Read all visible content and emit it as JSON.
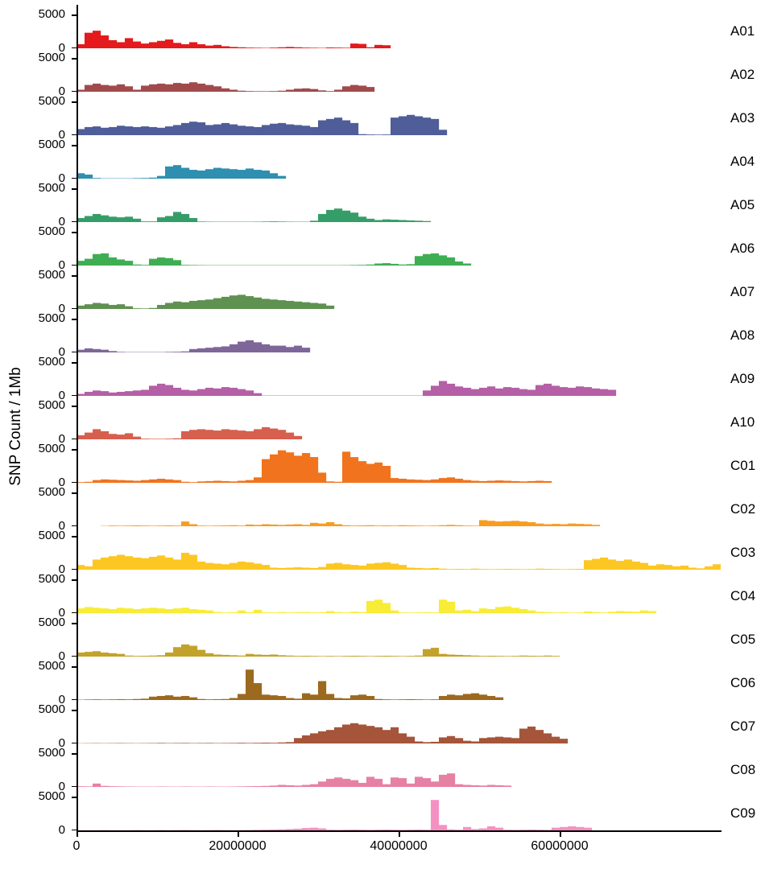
{
  "chart_data": {
    "type": "bar",
    "title": "",
    "xlabel": "",
    "ylabel": "SNP Count / 1Mb",
    "bin_size_bp": 1000000,
    "grid": false,
    "legend": "none",
    "layout": "19 stacked chromosome panels sharing one x axis, chromosome label at right of each panel",
    "x_axis": {
      "min": 0,
      "max": 80000000,
      "ticks": [
        0,
        20000000,
        40000000,
        60000000
      ],
      "tick_labels": [
        "0",
        "20000000",
        "40000000",
        "60000000"
      ]
    },
    "y_axis": {
      "min": 0,
      "max": 5000,
      "ticks": [
        0,
        5000
      ],
      "tick_labels": [
        "0",
        "5000"
      ]
    },
    "panels": [
      {
        "chromosome": "A01",
        "color": "#e41a1c",
        "values": [
          600,
          2300,
          2600,
          1900,
          1200,
          900,
          1500,
          1000,
          700,
          900,
          1100,
          1300,
          800,
          600,
          900,
          600,
          400,
          500,
          300,
          200,
          150,
          100,
          80,
          60,
          100,
          150,
          200,
          150,
          100,
          80,
          60,
          120,
          100,
          80,
          700,
          650,
          150,
          500,
          450
        ]
      },
      {
        "chromosome": "A02",
        "color": "#a04a4c",
        "values": [
          300,
          1000,
          1200,
          1000,
          900,
          1100,
          800,
          300,
          900,
          1100,
          1200,
          1100,
          1300,
          1200,
          1400,
          1200,
          1000,
          800,
          500,
          300,
          150,
          100,
          80,
          80,
          100,
          150,
          300,
          450,
          500,
          400,
          200,
          100,
          300,
          800,
          1000,
          900,
          700
        ]
      },
      {
        "chromosome": "A03",
        "color": "#4f5d99",
        "values": [
          900,
          1200,
          1300,
          1100,
          1200,
          1400,
          1300,
          1200,
          1300,
          1200,
          1100,
          1300,
          1500,
          1800,
          2000,
          1900,
          1500,
          1600,
          1800,
          1600,
          1400,
          1300,
          1200,
          1500,
          1700,
          1800,
          1600,
          1500,
          1400,
          1200,
          2200,
          2400,
          2600,
          2200,
          1800,
          150,
          100,
          80,
          100,
          2600,
          2800,
          3000,
          2800,
          2600,
          2400,
          800
        ]
      },
      {
        "chromosome": "A04",
        "color": "#2e8fb0",
        "values": [
          800,
          600,
          100,
          50,
          50,
          50,
          50,
          80,
          100,
          150,
          400,
          1800,
          2000,
          1600,
          1300,
          1200,
          1400,
          1600,
          1500,
          1400,
          1300,
          1500,
          1300,
          1200,
          800,
          400
        ]
      },
      {
        "chromosome": "A05",
        "color": "#359e68",
        "values": [
          600,
          900,
          1200,
          1000,
          800,
          700,
          800,
          500,
          100,
          100,
          700,
          900,
          1500,
          1200,
          600,
          80,
          60,
          50,
          50,
          50,
          50,
          50,
          60,
          80,
          100,
          80,
          60,
          50,
          50,
          200,
          1200,
          1800,
          2000,
          1700,
          1400,
          800,
          500,
          300,
          400,
          350,
          300,
          250,
          200,
          150
        ]
      },
      {
        "chromosome": "A06",
        "color": "#3fae53",
        "values": [
          700,
          1000,
          1700,
          1800,
          1200,
          900,
          700,
          150,
          100,
          1000,
          1200,
          1100,
          800,
          100,
          80,
          60,
          50,
          50,
          50,
          50,
          50,
          50,
          50,
          50,
          50,
          50,
          50,
          50,
          50,
          50,
          50,
          50,
          50,
          60,
          80,
          100,
          150,
          300,
          350,
          250,
          150,
          200,
          1400,
          1700,
          1800,
          1500,
          1200,
          600,
          300
        ]
      },
      {
        "chromosome": "A07",
        "color": "#5f9150",
        "values": [
          500,
          700,
          900,
          800,
          600,
          700,
          400,
          100,
          80,
          150,
          600,
          900,
          1100,
          1000,
          1200,
          1300,
          1400,
          1600,
          1800,
          2000,
          2100,
          1900,
          1700,
          1500,
          1400,
          1300,
          1200,
          1100,
          1000,
          900,
          800,
          500
        ]
      },
      {
        "chromosome": "A08",
        "color": "#7e6699",
        "values": [
          400,
          600,
          500,
          400,
          200,
          80,
          50,
          50,
          50,
          50,
          50,
          80,
          100,
          150,
          500,
          600,
          700,
          800,
          900,
          1200,
          1600,
          1800,
          1500,
          1200,
          1000,
          1000,
          800,
          1000,
          700
        ]
      },
      {
        "chromosome": "A09",
        "color": "#b55fa6",
        "values": [
          300,
          600,
          800,
          700,
          500,
          600,
          700,
          800,
          900,
          1500,
          1800,
          1600,
          1200,
          900,
          800,
          1000,
          1200,
          1100,
          1300,
          1200,
          1000,
          800,
          400,
          50,
          50,
          50,
          50,
          50,
          50,
          50,
          50,
          50,
          50,
          50,
          50,
          50,
          50,
          50,
          50,
          50,
          50,
          50,
          50,
          800,
          1500,
          2200,
          1800,
          1400,
          1200,
          1000,
          1200,
          1400,
          1100,
          1300,
          1200,
          1000,
          900,
          1600,
          1800,
          1500,
          1300,
          1200,
          1400,
          1300,
          1100,
          1000,
          900
        ]
      },
      {
        "chromosome": "A10",
        "color": "#d75f4e",
        "values": [
          600,
          1000,
          1500,
          1200,
          800,
          700,
          900,
          400,
          100,
          80,
          80,
          100,
          150,
          1200,
          1400,
          1500,
          1400,
          1300,
          1500,
          1400,
          1300,
          1200,
          1500,
          1800,
          1600,
          1400,
          1000,
          500
        ]
      },
      {
        "chromosome": "C01",
        "color": "#f1731d",
        "values": [
          100,
          150,
          400,
          500,
          450,
          400,
          350,
          300,
          400,
          500,
          600,
          500,
          400,
          150,
          100,
          200,
          250,
          300,
          250,
          200,
          300,
          400,
          800,
          3500,
          4200,
          4800,
          4500,
          4000,
          4400,
          3800,
          1500,
          200,
          150,
          4600,
          3800,
          3200,
          2800,
          3000,
          2500,
          700,
          600,
          500,
          450,
          400,
          500,
          700,
          800,
          600,
          400,
          300,
          250,
          300,
          350,
          300,
          250,
          200,
          250,
          300,
          250
        ]
      },
      {
        "chromosome": "C02",
        "color": "#f89c20",
        "values": [
          0,
          0,
          0,
          50,
          100,
          80,
          100,
          120,
          100,
          80,
          100,
          120,
          100,
          700,
          300,
          100,
          80,
          100,
          120,
          150,
          100,
          250,
          200,
          300,
          250,
          200,
          250,
          300,
          200,
          500,
          400,
          600,
          300,
          150,
          100,
          120,
          150,
          100,
          120,
          100,
          150,
          120,
          100,
          80,
          100,
          150,
          200,
          150,
          100,
          80,
          900,
          800,
          700,
          750,
          800,
          700,
          600,
          400,
          300,
          350,
          300,
          400,
          350,
          300,
          200
        ]
      },
      {
        "chromosome": "C03",
        "color": "#fcc723",
        "values": [
          700,
          500,
          1500,
          1800,
          2000,
          2200,
          2000,
          1800,
          1700,
          1900,
          2100,
          1800,
          1500,
          2500,
          2200,
          1200,
          1000,
          900,
          800,
          1000,
          1200,
          1100,
          900,
          700,
          300,
          250,
          300,
          350,
          300,
          250,
          400,
          900,
          1000,
          800,
          700,
          600,
          900,
          1000,
          1100,
          900,
          700,
          300,
          250,
          200,
          250,
          150,
          100,
          120,
          100,
          150,
          100,
          80,
          100,
          120,
          100,
          80,
          100,
          150,
          120,
          100,
          80,
          100,
          120,
          1400,
          1600,
          1800,
          1500,
          1300,
          1500,
          1200,
          1000,
          600,
          800,
          700,
          500,
          600,
          300,
          200,
          500,
          800
        ]
      },
      {
        "chromosome": "C04",
        "color": "#f8ec36",
        "values": [
          700,
          900,
          800,
          700,
          600,
          800,
          700,
          600,
          700,
          800,
          700,
          600,
          700,
          800,
          600,
          500,
          400,
          150,
          100,
          120,
          400,
          150,
          500,
          120,
          100,
          150,
          100,
          120,
          150,
          100,
          120,
          300,
          150,
          100,
          200,
          150,
          1800,
          2000,
          1500,
          400,
          100,
          80,
          100,
          120,
          100,
          2000,
          1700,
          400,
          500,
          300,
          700,
          600,
          900,
          1000,
          800,
          600,
          400,
          200,
          150,
          100,
          120,
          80,
          100,
          250,
          150,
          100,
          200,
          300,
          250,
          200,
          400,
          300
        ]
      },
      {
        "chromosome": "C05",
        "color": "#c3a22b",
        "values": [
          600,
          700,
          800,
          600,
          500,
          400,
          150,
          100,
          120,
          150,
          200,
          600,
          1400,
          1800,
          1600,
          1000,
          500,
          300,
          250,
          200,
          150,
          400,
          300,
          250,
          300,
          200,
          150,
          100,
          120,
          100,
          80,
          100,
          80,
          100,
          120,
          100,
          80,
          100,
          120,
          100,
          80,
          100,
          150,
          1100,
          1300,
          400,
          300,
          250,
          200,
          150,
          100,
          120,
          100,
          80,
          100,
          150,
          120,
          100,
          150,
          100
        ]
      },
      {
        "chromosome": "C06",
        "color": "#9b6a1f",
        "values": [
          50,
          80,
          100,
          80,
          100,
          120,
          100,
          150,
          200,
          500,
          600,
          700,
          500,
          600,
          400,
          150,
          100,
          120,
          150,
          300,
          900,
          4500,
          2500,
          800,
          700,
          600,
          300,
          200,
          1000,
          800,
          2800,
          900,
          300,
          250,
          700,
          800,
          600,
          150,
          100,
          80,
          100,
          120,
          100,
          80,
          100,
          600,
          800,
          700,
          900,
          1000,
          800,
          600,
          400
        ]
      },
      {
        "chromosome": "C07",
        "color": "#a5553a",
        "values": [
          30,
          40,
          50,
          40,
          50,
          60,
          50,
          40,
          50,
          60,
          80,
          60,
          70,
          80,
          60,
          70,
          80,
          60,
          70,
          80,
          100,
          80,
          100,
          120,
          100,
          150,
          200,
          800,
          1200,
          1500,
          1800,
          2000,
          2400,
          2800,
          3000,
          2800,
          2600,
          2400,
          2000,
          2400,
          1500,
          1000,
          300,
          200,
          250,
          900,
          1100,
          800,
          400,
          300,
          800,
          900,
          1000,
          900,
          800,
          2200,
          2500,
          2000,
          1500,
          1000,
          700
        ]
      },
      {
        "chromosome": "C08",
        "color": "#e680a5",
        "values": [
          100,
          80,
          500,
          150,
          100,
          80,
          60,
          50,
          50,
          50,
          60,
          50,
          50,
          60,
          50,
          50,
          60,
          50,
          50,
          60,
          80,
          100,
          120,
          150,
          200,
          300,
          250,
          200,
          300,
          400,
          800,
          1200,
          1400,
          1200,
          1000,
          600,
          1500,
          1200,
          400,
          1400,
          1300,
          500,
          1500,
          1300,
          800,
          1800,
          2000,
          400,
          300,
          250,
          200,
          300,
          250,
          200
        ]
      },
      {
        "chromosome": "C09",
        "color": "#f591c2",
        "values": [
          30,
          20,
          30,
          40,
          30,
          20,
          30,
          40,
          30,
          20,
          40,
          30,
          40,
          50,
          40,
          30,
          40,
          50,
          40,
          30,
          40,
          60,
          80,
          100,
          120,
          150,
          200,
          250,
          350,
          400,
          300,
          100,
          80,
          100,
          120,
          100,
          80,
          100,
          120,
          100,
          80,
          100,
          120,
          100,
          4500,
          800,
          150,
          100,
          500,
          200,
          300,
          600,
          400,
          100,
          80,
          100,
          120,
          100,
          80,
          400,
          500,
          600,
          500,
          400
        ]
      }
    ]
  }
}
